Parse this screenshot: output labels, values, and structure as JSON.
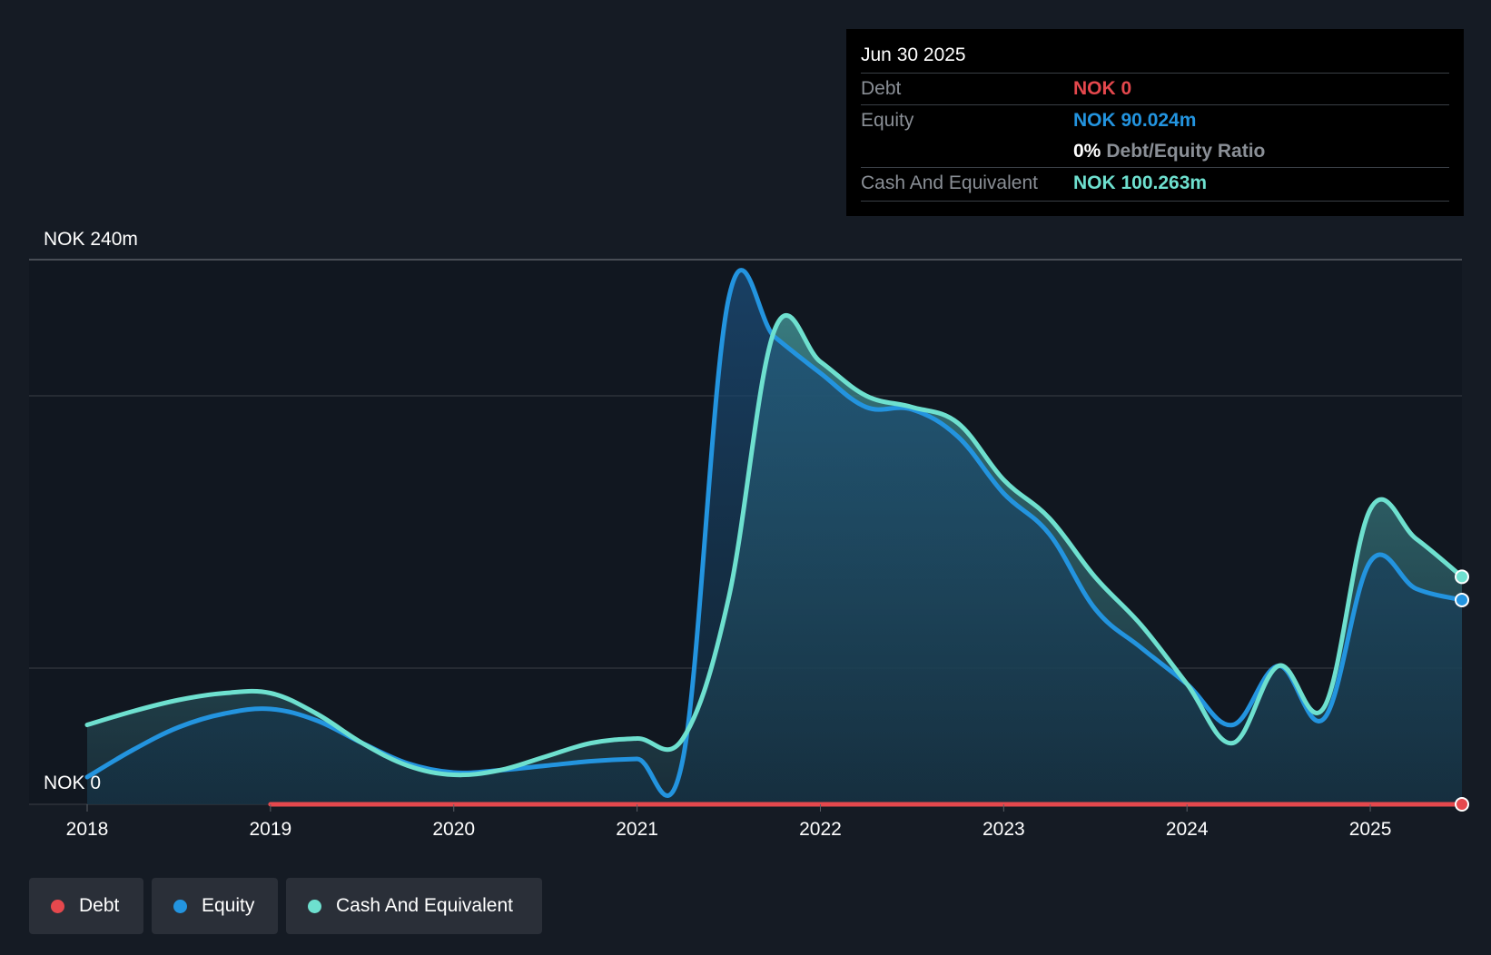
{
  "colors": {
    "debt": "#e5484d",
    "equity": "#2394df",
    "cash": "#6ee0cf",
    "background": "#151b24",
    "grid": "#3a3f46"
  },
  "tooltip": {
    "date": "Jun 30 2025",
    "debt_label": "Debt",
    "debt_value": "NOK 0",
    "equity_label": "Equity",
    "equity_value": "NOK 90.024m",
    "ratio_value": "0%",
    "ratio_label": "Debt/Equity Ratio",
    "cash_label": "Cash And Equivalent",
    "cash_value": "NOK 100.263m"
  },
  "legend": {
    "debt": "Debt",
    "equity": "Equity",
    "cash": "Cash And Equivalent"
  },
  "chart_data": {
    "type": "area",
    "ylim": [
      0,
      240
    ],
    "y_top_label": "NOK 240m",
    "y_bottom_label": "NOK 0",
    "x_ticks": [
      "2018",
      "2019",
      "2020",
      "2021",
      "2022",
      "2023",
      "2024",
      "2025"
    ],
    "x_range": [
      2018.0,
      2025.5
    ],
    "series": [
      {
        "name": "Debt",
        "color": "#e5484d",
        "points": [
          [
            2019.0,
            0
          ],
          [
            2025.5,
            0
          ]
        ]
      },
      {
        "name": "Equity",
        "color": "#2394df",
        "points": [
          [
            2018.0,
            12
          ],
          [
            2018.25,
            24
          ],
          [
            2018.5,
            34
          ],
          [
            2018.75,
            40
          ],
          [
            2019.0,
            42
          ],
          [
            2019.25,
            37
          ],
          [
            2019.5,
            27
          ],
          [
            2019.75,
            18
          ],
          [
            2020.0,
            14
          ],
          [
            2020.25,
            15
          ],
          [
            2020.5,
            17
          ],
          [
            2020.75,
            19
          ],
          [
            2021.0,
            20
          ],
          [
            2021.25,
            20
          ],
          [
            2021.5,
            223
          ],
          [
            2021.75,
            206
          ],
          [
            2022.0,
            190
          ],
          [
            2022.25,
            175
          ],
          [
            2022.5,
            174
          ],
          [
            2022.75,
            162
          ],
          [
            2023.0,
            137
          ],
          [
            2023.25,
            119
          ],
          [
            2023.5,
            86
          ],
          [
            2023.75,
            69
          ],
          [
            2024.0,
            53
          ],
          [
            2024.25,
            35
          ],
          [
            2024.5,
            61
          ],
          [
            2024.75,
            38
          ],
          [
            2025.0,
            107
          ],
          [
            2025.25,
            95
          ],
          [
            2025.5,
            90.024
          ]
        ]
      },
      {
        "name": "Cash And Equivalent",
        "color": "#6ee0cf",
        "points": [
          [
            2018.0,
            35
          ],
          [
            2018.25,
            41
          ],
          [
            2018.5,
            46
          ],
          [
            2018.75,
            49
          ],
          [
            2019.0,
            49
          ],
          [
            2019.25,
            40
          ],
          [
            2019.5,
            27
          ],
          [
            2019.75,
            17
          ],
          [
            2020.0,
            13
          ],
          [
            2020.25,
            15
          ],
          [
            2020.5,
            21
          ],
          [
            2020.75,
            27
          ],
          [
            2021.0,
            29
          ],
          [
            2021.25,
            29
          ],
          [
            2021.5,
            91
          ],
          [
            2021.75,
            209
          ],
          [
            2022.0,
            195
          ],
          [
            2022.25,
            180
          ],
          [
            2022.5,
            175
          ],
          [
            2022.75,
            168
          ],
          [
            2023.0,
            143
          ],
          [
            2023.25,
            126
          ],
          [
            2023.5,
            100
          ],
          [
            2023.75,
            79
          ],
          [
            2024.0,
            53
          ],
          [
            2024.25,
            27
          ],
          [
            2024.5,
            61
          ],
          [
            2024.75,
            43
          ],
          [
            2025.0,
            130
          ],
          [
            2025.25,
            117
          ],
          [
            2025.5,
            100.263
          ]
        ]
      }
    ]
  }
}
